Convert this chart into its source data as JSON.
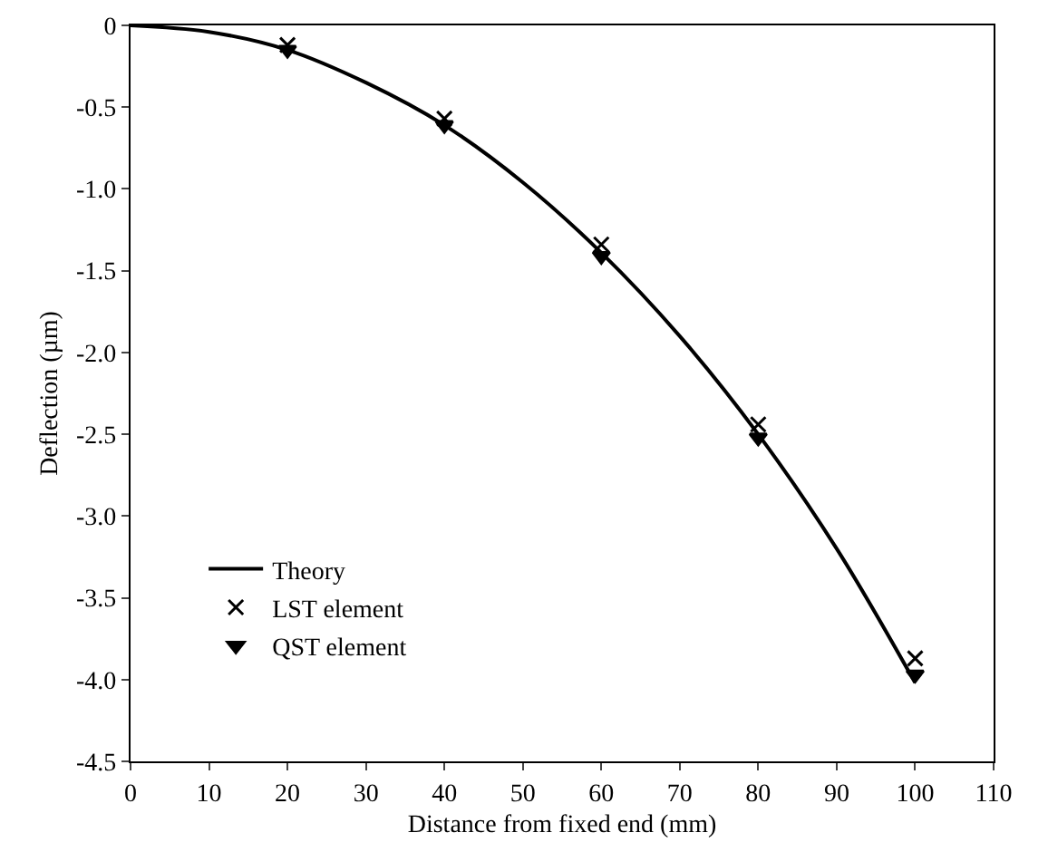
{
  "chart_data": {
    "type": "line",
    "xlabel": "Distance from fixed end (mm)",
    "ylabel": "Deflection (µm)",
    "xlim": [
      0,
      110
    ],
    "xticks": [
      0,
      10,
      20,
      30,
      40,
      50,
      60,
      70,
      80,
      90,
      100,
      110
    ],
    "ylim": [
      -4.5,
      0
    ],
    "yticks": [
      0,
      {
        "value": -0.5,
        "label": "-0.5"
      },
      {
        "value": -1,
        "label": "-1.0"
      },
      {
        "value": -1.5,
        "label": "-1.5"
      },
      {
        "value": -2,
        "label": "-2.0"
      },
      {
        "value": -2.5,
        "label": "-2.5"
      },
      {
        "value": -3,
        "label": "-3.0"
      },
      {
        "value": -3.5,
        "label": "-3.5"
      },
      {
        "value": -4,
        "label": "-4.0"
      },
      {
        "value": -4.5,
        "label": "-4.5"
      }
    ],
    "grid": false,
    "legend": "bottom left",
    "series": [
      {
        "name": "Theory",
        "type": "line",
        "marker": "none",
        "line_style": "solid",
        "color": "#000000",
        "x": [
          0,
          10,
          20,
          30,
          40,
          50,
          60,
          70,
          80,
          90,
          100
        ],
        "values": [
          0,
          -0.04,
          -0.15,
          -0.35,
          -0.61,
          -0.96,
          -1.39,
          -1.9,
          -2.5,
          -3.2,
          -4.02
        ]
      },
      {
        "name": "LST element",
        "type": "scatter",
        "marker": "cross",
        "color": "#000000",
        "x": [
          20,
          40,
          60,
          80,
          100
        ],
        "values": [
          -0.12,
          -0.57,
          -1.34,
          -2.44,
          -3.87
        ]
      },
      {
        "name": "QST element",
        "type": "scatter",
        "marker": "triangle",
        "color": "#000000",
        "x": [
          20,
          40,
          60,
          80,
          100
        ],
        "values": [
          -0.15,
          -0.61,
          -1.41,
          -2.52,
          -3.97
        ]
      }
    ]
  }
}
